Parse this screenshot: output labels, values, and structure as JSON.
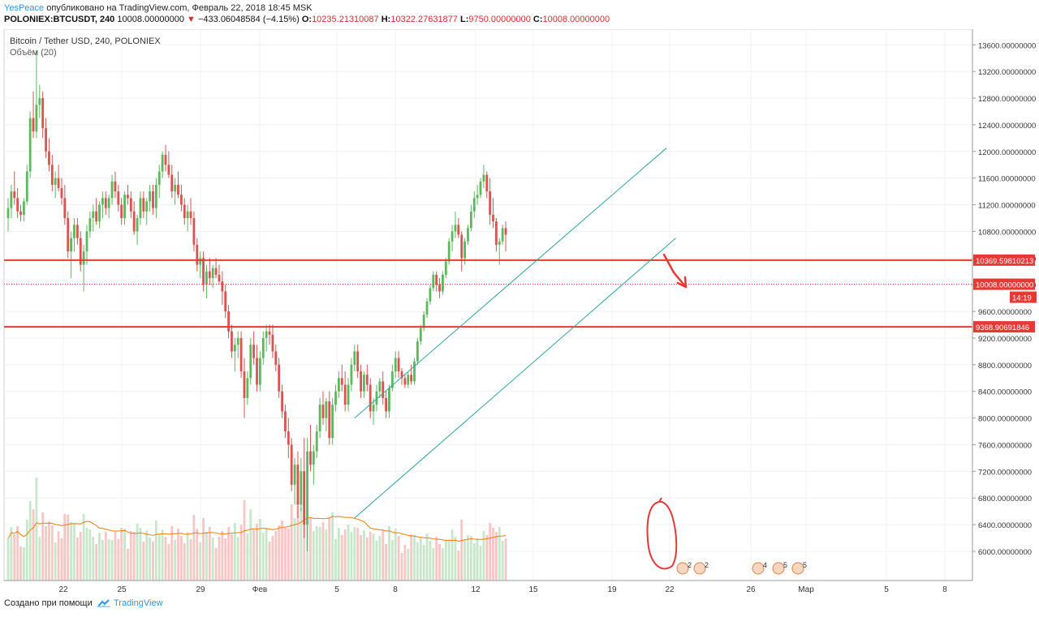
{
  "header": {
    "author": "YesPeace",
    "published_text": "опубликовано на TradingView.com, Февраль 22, 2018 18:45 MSK",
    "symbol": "POLONIEX:BTCUSDT, 240",
    "last_value": "10008.00000000",
    "change_arrow": "▼",
    "change": "−433.06048584 (−4.15%)",
    "ohlc": {
      "o_label": "O:",
      "o": "10235.21310087",
      "h_label": "H:",
      "h": "10322.27631877",
      "l_label": "L:",
      "l": "9750.00000000",
      "c_label": "C:",
      "c": "10008.00000000"
    }
  },
  "chart_title": "Bitcoin / Tether USD, 240, POLONIEX",
  "volume_label": "Объём (20)",
  "footer": {
    "created_with": "Создано при помощи",
    "brand": "TradingView",
    "logo_icon": "tradingview-cloud-icon"
  },
  "colors": {
    "up": "#5cb85c",
    "down": "#d9534f",
    "level_lines": "#e53935",
    "channel": "#26a69a",
    "volume_ma": "#f57c00",
    "annotation": "#e53935"
  },
  "chart_data": {
    "type": "candlestick",
    "title": "Bitcoin / Tether USD, 240, POLONIEX",
    "ylim": [
      5700,
      13800
    ],
    "y_ticks": [
      6000,
      6400,
      6800,
      7200,
      7600,
      8000,
      8400,
      8800,
      9200,
      9600,
      10000,
      10400,
      10800,
      11200,
      11600,
      12000,
      12400,
      12800,
      13200,
      13600
    ],
    "y_tick_labels": [
      "6000.00000000",
      "6400.00000000",
      "6800.00000000",
      "7200.00000000",
      "7600.00000000",
      "8000.00000000",
      "8400.00000000",
      "8800.00000000",
      "9200.00000000",
      "9600.00000000",
      "10000.00000000",
      "10400.00000000",
      "10800.00000000",
      "11200.00000000",
      "11600.00000000",
      "12000.00000000",
      "12400.00000000",
      "12800.00000000",
      "13200.00000000",
      "13600.00000000"
    ],
    "x_tick_labels": [
      "22",
      "25",
      "29",
      "Фев",
      "5",
      "8",
      "12",
      "15",
      "19",
      "22",
      "26",
      "Мар",
      "5",
      "8"
    ],
    "grid": true,
    "horizontal_levels": [
      {
        "value": 10369.6,
        "label": "10369.59810213",
        "style": "solid"
      },
      {
        "value": 9368.9,
        "label": "9368.90691846",
        "style": "solid"
      },
      {
        "value": 10008,
        "label": "10008.00000000",
        "style": "dotted"
      }
    ],
    "countdown": "14:19",
    "channel": {
      "upper": {
        "from": {
          "bar": 110,
          "price": 8000
        },
        "to": {
          "bar": 209,
          "price": 12050
        }
      },
      "lower": {
        "from": {
          "bar": 110,
          "price": 6500
        },
        "to": {
          "bar": 212,
          "price": 10700
        }
      }
    },
    "candles": [
      [
        11000,
        11300,
        10800,
        11150
      ],
      [
        11150,
        11500,
        11000,
        11400
      ],
      [
        11400,
        11700,
        11200,
        11300
      ],
      [
        11300,
        11450,
        11000,
        11100
      ],
      [
        11100,
        11200,
        10950,
        11050
      ],
      [
        11050,
        11300,
        10950,
        11250
      ],
      [
        11250,
        11800,
        11200,
        11700
      ],
      [
        11700,
        12600,
        11600,
        12500
      ],
      [
        12500,
        12900,
        12200,
        12300
      ],
      [
        12300,
        13500,
        12200,
        12700
      ],
      [
        12700,
        13000,
        12500,
        12800
      ],
      [
        12800,
        12900,
        12200,
        12350
      ],
      [
        12350,
        12500,
        11900,
        12000
      ],
      [
        12000,
        12200,
        11700,
        11800
      ],
      [
        11800,
        11950,
        11400,
        11500
      ],
      [
        11500,
        11700,
        11300,
        11600
      ],
      [
        11600,
        11800,
        11400,
        11450
      ],
      [
        11450,
        11600,
        11200,
        11300
      ],
      [
        11300,
        11500,
        10900,
        11000
      ],
      [
        11000,
        11100,
        10400,
        10500
      ],
      [
        10500,
        10800,
        10100,
        10700
      ],
      [
        10700,
        11000,
        10500,
        10900
      ],
      [
        10900,
        11000,
        10600,
        10700
      ],
      [
        10700,
        10800,
        10200,
        10300
      ],
      [
        10300,
        10600,
        9900,
        10500
      ],
      [
        10500,
        10900,
        10300,
        10800
      ],
      [
        10800,
        11100,
        10700,
        11000
      ],
      [
        11000,
        11200,
        10800,
        11100
      ],
      [
        11100,
        11300,
        10900,
        10950
      ],
      [
        10950,
        11250,
        10850,
        11200
      ],
      [
        11200,
        11400,
        11000,
        11300
      ],
      [
        11300,
        11400,
        11050,
        11150
      ],
      [
        11150,
        11350,
        11000,
        11300
      ],
      [
        11300,
        11650,
        11200,
        11550
      ],
      [
        11550,
        11700,
        11300,
        11400
      ],
      [
        11400,
        11500,
        11100,
        11200
      ],
      [
        11200,
        11300,
        10900,
        11000
      ],
      [
        11000,
        11400,
        10900,
        11350
      ],
      [
        11350,
        11500,
        11200,
        11300
      ],
      [
        11300,
        11400,
        11000,
        11100
      ],
      [
        11100,
        11250,
        10750,
        10800
      ],
      [
        10800,
        11050,
        10600,
        11000
      ],
      [
        11000,
        11400,
        10900,
        11300
      ],
      [
        11300,
        11400,
        11000,
        11100
      ],
      [
        11100,
        11300,
        10900,
        11250
      ],
      [
        11250,
        11500,
        11100,
        11400
      ],
      [
        11400,
        11500,
        11050,
        11150
      ],
      [
        11150,
        11600,
        11000,
        11500
      ],
      [
        11500,
        11800,
        11300,
        11700
      ],
      [
        11700,
        12000,
        11600,
        11950
      ],
      [
        11950,
        12100,
        11700,
        11800
      ],
      [
        11800,
        12000,
        11600,
        11650
      ],
      [
        11650,
        11800,
        11300,
        11400
      ],
      [
        11400,
        11600,
        11200,
        11500
      ],
      [
        11500,
        11700,
        11300,
        11350
      ],
      [
        11350,
        11500,
        11100,
        11200
      ],
      [
        11200,
        11300,
        10900,
        11000
      ],
      [
        11000,
        11200,
        10800,
        11100
      ],
      [
        11100,
        11300,
        10900,
        11000
      ],
      [
        11000,
        11100,
        10500,
        10600
      ],
      [
        10600,
        10700,
        10200,
        10300
      ],
      [
        10300,
        10500,
        10100,
        10400
      ],
      [
        10400,
        10500,
        9900,
        10000
      ],
      [
        10000,
        10300,
        9800,
        10200
      ],
      [
        10200,
        10400,
        10000,
        10100
      ],
      [
        10100,
        10300,
        9950,
        10250
      ],
      [
        10250,
        10400,
        10100,
        10150
      ],
      [
        10150,
        10300,
        10000,
        10050
      ],
      [
        10050,
        10200,
        9700,
        9900
      ],
      [
        9900,
        10000,
        9500,
        9600
      ],
      [
        9600,
        9700,
        9200,
        9300
      ],
      [
        9300,
        9400,
        8900,
        9000
      ],
      [
        9000,
        9200,
        8700,
        9100
      ],
      [
        9100,
        9300,
        8900,
        9200
      ],
      [
        9200,
        9300,
        8600,
        8700
      ],
      [
        8700,
        8900,
        8000,
        8300
      ],
      [
        8300,
        8700,
        8200,
        8600
      ],
      [
        8600,
        9200,
        8500,
        9100
      ],
      [
        9100,
        9300,
        8800,
        8900
      ],
      [
        8900,
        9100,
        8400,
        8500
      ],
      [
        8500,
        9000,
        8400,
        8900
      ],
      [
        8900,
        9300,
        8800,
        9200
      ],
      [
        9200,
        9400,
        9000,
        9300
      ],
      [
        9300,
        9400,
        9100,
        9250
      ],
      [
        9250,
        9400,
        8900,
        9000
      ],
      [
        9000,
        9100,
        8700,
        8800
      ],
      [
        8800,
        8900,
        8300,
        8400
      ],
      [
        8400,
        8500,
        8000,
        8100
      ],
      [
        8100,
        8200,
        7700,
        7800
      ],
      [
        7800,
        8000,
        7400,
        7600
      ],
      [
        7600,
        7700,
        6900,
        7000
      ],
      [
        7000,
        7400,
        6700,
        7300
      ],
      [
        7300,
        7500,
        6500,
        6700
      ],
      [
        6700,
        7400,
        6600,
        7200
      ],
      [
        7200,
        7700,
        6200,
        6400
      ],
      [
        6400,
        7700,
        6000,
        7500
      ],
      [
        7500,
        7900,
        7200,
        7300
      ],
      [
        7300,
        7600,
        7000,
        7500
      ],
      [
        7500,
        7900,
        7400,
        7800
      ],
      [
        7800,
        8300,
        7700,
        8200
      ],
      [
        8200,
        8400,
        7900,
        8000
      ],
      [
        8000,
        8300,
        7800,
        8250
      ],
      [
        8250,
        8400,
        7600,
        7700
      ],
      [
        7700,
        8300,
        7600,
        8200
      ],
      [
        8200,
        8500,
        8100,
        8400
      ],
      [
        8400,
        8700,
        8300,
        8600
      ],
      [
        8600,
        8800,
        8400,
        8500
      ],
      [
        8500,
        8700,
        8100,
        8200
      ],
      [
        8200,
        8600,
        8100,
        8500
      ],
      [
        8500,
        8900,
        8400,
        8800
      ],
      [
        8800,
        9100,
        8700,
        9000
      ],
      [
        9000,
        9100,
        8600,
        8700
      ],
      [
        8700,
        8800,
        8300,
        8400
      ],
      [
        8400,
        8700,
        8300,
        8650
      ],
      [
        8650,
        8800,
        8400,
        8500
      ],
      [
        8500,
        8600,
        8000,
        8100
      ],
      [
        8100,
        8300,
        7900,
        8200
      ],
      [
        8200,
        8500,
        8100,
        8400
      ],
      [
        8400,
        8600,
        8300,
        8550
      ],
      [
        8550,
        8700,
        8200,
        8300
      ],
      [
        8300,
        8400,
        8000,
        8100
      ],
      [
        8100,
        8500,
        8000,
        8450
      ],
      [
        8450,
        8800,
        8400,
        8700
      ],
      [
        8700,
        9000,
        8600,
        8900
      ],
      [
        8900,
        9000,
        8600,
        8700
      ],
      [
        8700,
        8750,
        8500,
        8600
      ],
      [
        8600,
        8650,
        8450,
        8500
      ],
      [
        8500,
        8700,
        8450,
        8650
      ],
      [
        8650,
        8800,
        8500,
        8550
      ],
      [
        8550,
        8900,
        8500,
        8850
      ],
      [
        8850,
        9200,
        8800,
        9150
      ],
      [
        9150,
        9400,
        9100,
        9350
      ],
      [
        9350,
        9600,
        9300,
        9550
      ],
      [
        9550,
        9800,
        9500,
        9750
      ],
      [
        9750,
        10000,
        9700,
        9950
      ],
      [
        9950,
        10200,
        9900,
        10150
      ],
      [
        10150,
        10200,
        9900,
        10000
      ],
      [
        10000,
        10100,
        9800,
        9900
      ],
      [
        9900,
        10200,
        9850,
        10150
      ],
      [
        10150,
        10400,
        10100,
        10350
      ],
      [
        10350,
        10700,
        10300,
        10650
      ],
      [
        10650,
        10900,
        10500,
        10800
      ],
      [
        10800,
        11100,
        10700,
        10900
      ],
      [
        10900,
        11000,
        10700,
        10750
      ],
      [
        10750,
        10800,
        10200,
        10400
      ],
      [
        10400,
        10700,
        10300,
        10650
      ],
      [
        10650,
        10900,
        10600,
        10850
      ],
      [
        10850,
        11200,
        10800,
        11100
      ],
      [
        11100,
        11400,
        11000,
        11300
      ],
      [
        11300,
        11500,
        11200,
        11350
      ],
      [
        11350,
        11600,
        11300,
        11550
      ],
      [
        11550,
        11800,
        11450,
        11650
      ],
      [
        11650,
        11700,
        11300,
        11400
      ],
      [
        11400,
        11600,
        10900,
        11050
      ],
      [
        11050,
        11300,
        10850,
        10950
      ],
      [
        10950,
        11000,
        10500,
        10600
      ],
      [
        10600,
        10700,
        10300,
        10650
      ],
      [
        10650,
        10900,
        10600,
        10850
      ],
      [
        10850,
        10950,
        10500,
        10750
      ]
    ]
  }
}
